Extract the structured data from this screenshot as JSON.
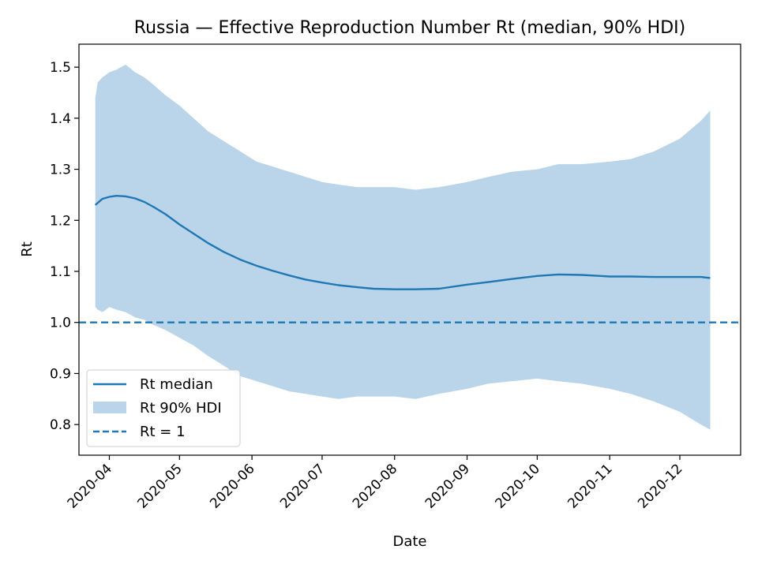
{
  "chart_data": {
    "type": "line",
    "title": "Russia — Effective Reproduction Number Rt (median, 90% HDI)",
    "xlabel": "Date",
    "ylabel": "Rt",
    "xlim": [
      "2020-03-19",
      "2020-12-27"
    ],
    "ylim": [
      0.74,
      1.545
    ],
    "grid": false,
    "legend_placement": "lower-left",
    "colors": {
      "median": "#1f77b4",
      "band": "#bad5e9",
      "reference": "#1f77b4"
    },
    "x_ticks": [
      "2020-04",
      "2020-05",
      "2020-06",
      "2020-07",
      "2020-08",
      "2020-09",
      "2020-10",
      "2020-11",
      "2020-12"
    ],
    "x_tick_dates": [
      "2020-04-01",
      "2020-05-01",
      "2020-06-01",
      "2020-07-01",
      "2020-08-01",
      "2020-09-01",
      "2020-10-01",
      "2020-11-01",
      "2020-12-01"
    ],
    "y_ticks": [
      0.8,
      0.9,
      1.0,
      1.1,
      1.2,
      1.3,
      1.4,
      1.5
    ],
    "legend": [
      "Rt median",
      "Rt 90% HDI",
      "Rt = 1"
    ],
    "reference_line": 1.0,
    "series": [
      {
        "name": "Rt median",
        "x": [
          "2020-03-26",
          "2020-03-29",
          "2020-04-01",
          "2020-04-04",
          "2020-04-08",
          "2020-04-12",
          "2020-04-16",
          "2020-04-20",
          "2020-04-25",
          "2020-05-01",
          "2020-05-07",
          "2020-05-13",
          "2020-05-20",
          "2020-05-27",
          "2020-06-03",
          "2020-06-10",
          "2020-06-17",
          "2020-06-24",
          "2020-07-01",
          "2020-07-08",
          "2020-07-16",
          "2020-07-23",
          "2020-08-01",
          "2020-08-10",
          "2020-08-20",
          "2020-09-01",
          "2020-09-10",
          "2020-09-20",
          "2020-10-01",
          "2020-10-10",
          "2020-10-20",
          "2020-11-01",
          "2020-11-10",
          "2020-11-20",
          "2020-12-01",
          "2020-12-10",
          "2020-12-14"
        ],
        "y": [
          1.23,
          1.242,
          1.246,
          1.248,
          1.247,
          1.243,
          1.236,
          1.226,
          1.212,
          1.192,
          1.174,
          1.156,
          1.138,
          1.123,
          1.111,
          1.101,
          1.092,
          1.084,
          1.078,
          1.073,
          1.069,
          1.066,
          1.065,
          1.065,
          1.066,
          1.074,
          1.079,
          1.085,
          1.091,
          1.094,
          1.093,
          1.09,
          1.09,
          1.089,
          1.089,
          1.089,
          1.087
        ]
      },
      {
        "name": "Rt 90% HDI",
        "x": [
          "2020-03-26",
          "2020-03-27",
          "2020-03-29",
          "2020-04-01",
          "2020-04-04",
          "2020-04-08",
          "2020-04-12",
          "2020-04-16",
          "2020-04-20",
          "2020-04-25",
          "2020-05-01",
          "2020-05-07",
          "2020-05-13",
          "2020-05-20",
          "2020-05-27",
          "2020-06-03",
          "2020-06-10",
          "2020-06-17",
          "2020-06-24",
          "2020-07-01",
          "2020-07-08",
          "2020-07-16",
          "2020-07-23",
          "2020-08-01",
          "2020-08-10",
          "2020-08-20",
          "2020-09-01",
          "2020-09-10",
          "2020-09-20",
          "2020-10-01",
          "2020-10-10",
          "2020-10-20",
          "2020-11-01",
          "2020-11-10",
          "2020-11-20",
          "2020-12-01",
          "2020-12-10",
          "2020-12-14"
        ],
        "upper": [
          1.44,
          1.47,
          1.48,
          1.49,
          1.495,
          1.505,
          1.49,
          1.48,
          1.465,
          1.445,
          1.425,
          1.4,
          1.375,
          1.355,
          1.335,
          1.315,
          1.305,
          1.295,
          1.285,
          1.275,
          1.27,
          1.265,
          1.265,
          1.265,
          1.26,
          1.265,
          1.275,
          1.285,
          1.295,
          1.3,
          1.31,
          1.31,
          1.315,
          1.32,
          1.335,
          1.36,
          1.395,
          1.415
        ],
        "lower": [
          1.03,
          1.025,
          1.02,
          1.03,
          1.025,
          1.02,
          1.01,
          1.005,
          0.995,
          0.985,
          0.97,
          0.955,
          0.935,
          0.915,
          0.895,
          0.885,
          0.875,
          0.865,
          0.86,
          0.855,
          0.85,
          0.855,
          0.855,
          0.855,
          0.85,
          0.86,
          0.87,
          0.88,
          0.885,
          0.89,
          0.885,
          0.88,
          0.87,
          0.86,
          0.845,
          0.825,
          0.8,
          0.79
        ]
      }
    ]
  }
}
